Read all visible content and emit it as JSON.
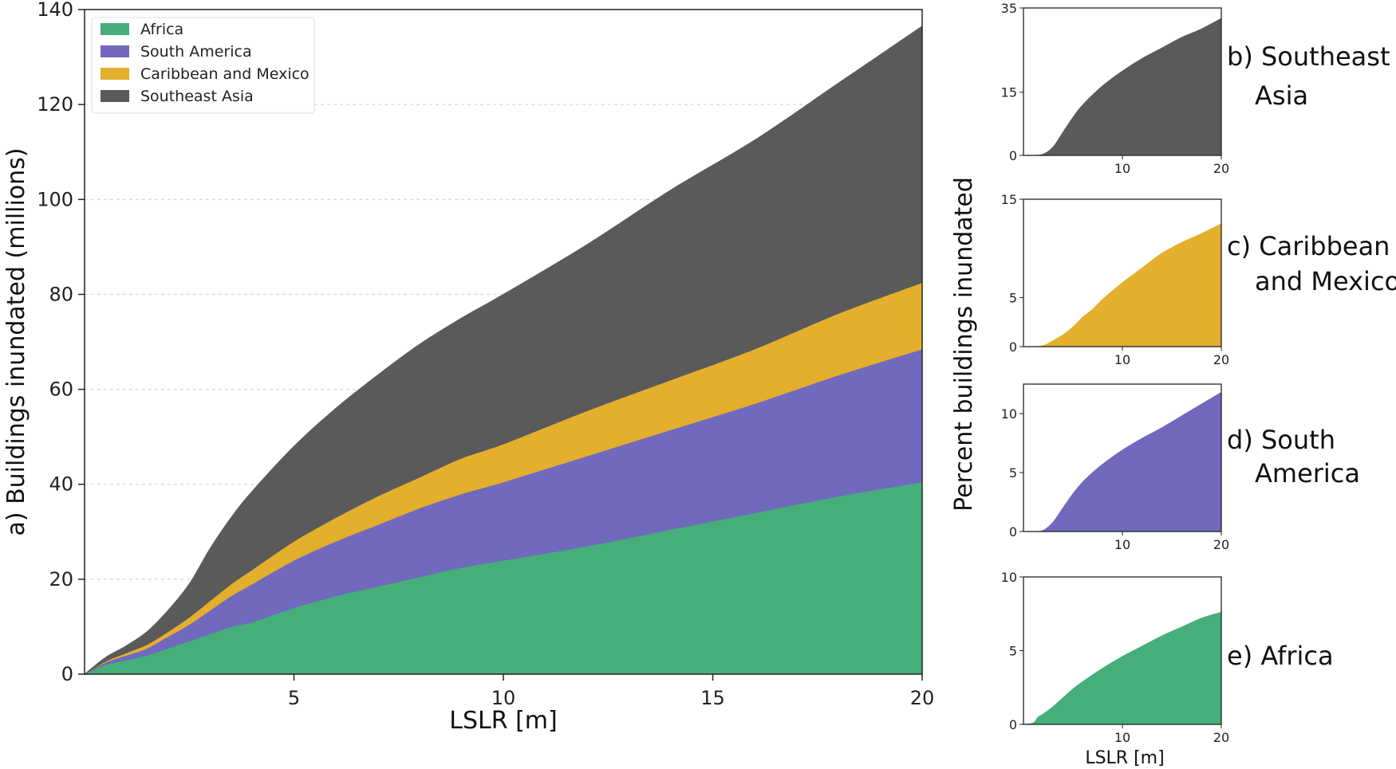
{
  "chart_data": [
    {
      "id": "a",
      "type": "area",
      "stacked": true,
      "xlabel": "LSLR [m]",
      "ylabel": "a) Buildings inundated (millions)",
      "xlim": [
        0,
        20
      ],
      "ylim": [
        0,
        140
      ],
      "xticks": [
        5,
        10,
        15,
        20
      ],
      "yticks": [
        0,
        20,
        40,
        60,
        80,
        100,
        120,
        140
      ],
      "grid": "horizontal-dashed",
      "legend_position": "top-left",
      "x": [
        0,
        0.5,
        1,
        1.5,
        2,
        2.5,
        3,
        3.5,
        4,
        5,
        6,
        7,
        8,
        9,
        10,
        12,
        14,
        16,
        18,
        20
      ],
      "series": [
        {
          "name": "Africa",
          "color": "#46AE79",
          "values": [
            0,
            2,
            3,
            4,
            5.5,
            7,
            8.5,
            10,
            11,
            14,
            16.5,
            18.5,
            20.5,
            22.5,
            24,
            27,
            30.5,
            34,
            37.5,
            40.5
          ]
        },
        {
          "name": "South America",
          "color": "#7069BE",
          "values": [
            0,
            0.5,
            1,
            1.5,
            2.5,
            3.5,
            5,
            6.5,
            8,
            10,
            11.5,
            13,
            14.5,
            15.5,
            16.5,
            19,
            21,
            23,
            25.5,
            28
          ]
        },
        {
          "name": "Caribbean and Mexico",
          "color": "#E3AF2C",
          "values": [
            0,
            0.2,
            0.5,
            0.8,
            1,
            1.5,
            2,
            2.5,
            3,
            4,
            5,
            6,
            6.5,
            7.5,
            8,
            9.5,
            10.5,
            11.5,
            13,
            14
          ]
        },
        {
          "name": "Southeast Asia",
          "color": "#5A5A5A",
          "values": [
            0,
            0.8,
            1.5,
            2.7,
            4.5,
            7,
            11,
            14,
            16.5,
            20,
            23,
            25.5,
            28,
            29.5,
            31.5,
            35,
            40,
            44,
            48.5,
            54
          ]
        }
      ]
    },
    {
      "id": "b",
      "type": "area",
      "title": "b) Southeast Asia",
      "title_lines": [
        "b) Southeast",
        "Asia"
      ],
      "color": "#5A5A5A",
      "xlim": [
        0,
        20
      ],
      "ylim": [
        0,
        35
      ],
      "xticks": [
        10,
        20
      ],
      "yticks": [
        0,
        15,
        35
      ],
      "x": [
        0,
        1,
        2,
        3,
        4,
        5,
        6,
        8,
        10,
        12,
        14,
        16,
        18,
        20
      ],
      "values": [
        0,
        0,
        0.3,
        2,
        5.5,
        9,
        12,
        16.5,
        20,
        23,
        25.5,
        28,
        30,
        32.5
      ]
    },
    {
      "id": "c",
      "type": "area",
      "title": "c) Caribbean and Mexico",
      "title_lines": [
        "c) Caribbean",
        "and Mexico"
      ],
      "color": "#E3AF2C",
      "xlim": [
        0,
        20
      ],
      "ylim": [
        0,
        15
      ],
      "xticks": [
        10,
        20
      ],
      "yticks": [
        0,
        5,
        15
      ],
      "x": [
        0,
        1,
        2,
        3,
        4,
        5,
        6,
        7,
        8,
        10,
        12,
        14,
        16,
        18,
        20
      ],
      "values": [
        0,
        0,
        0.1,
        0.6,
        1.2,
        2,
        3,
        3.8,
        4.8,
        6.5,
        8,
        9.5,
        10.6,
        11.5,
        12.5
      ]
    },
    {
      "id": "d",
      "type": "area",
      "title": "d) South America",
      "title_lines": [
        "d) South",
        "America"
      ],
      "color": "#7069BE",
      "xlim": [
        0,
        20
      ],
      "ylim": [
        0,
        12.5
      ],
      "xticks": [
        10,
        20
      ],
      "yticks": [
        0,
        5,
        10
      ],
      "x": [
        0,
        1,
        2,
        3,
        4,
        5,
        6,
        7,
        8,
        10,
        12,
        14,
        16,
        18,
        20
      ],
      "values": [
        0,
        0,
        0.1,
        0.8,
        2,
        3.2,
        4.2,
        5,
        5.7,
        6.9,
        7.9,
        8.8,
        9.8,
        10.8,
        11.8
      ]
    },
    {
      "id": "e",
      "type": "area",
      "title": "e) Africa",
      "title_lines": [
        "e) Africa"
      ],
      "color": "#46AE79",
      "xlim": [
        0,
        20
      ],
      "ylim": [
        0,
        10
      ],
      "xticks": [
        10,
        20
      ],
      "yticks": [
        0,
        5,
        10
      ],
      "x": [
        0,
        1,
        1.5,
        2,
        3,
        4,
        5,
        6,
        8,
        10,
        12,
        14,
        16,
        18,
        20
      ],
      "values": [
        0,
        0.1,
        0.5,
        0.7,
        1.2,
        1.8,
        2.4,
        2.9,
        3.8,
        4.6,
        5.3,
        6,
        6.6,
        7.2,
        7.6
      ]
    }
  ],
  "small_panels_xlabel": "LSLR [m]",
  "small_panels_ylabel": "Percent buildings inundated"
}
